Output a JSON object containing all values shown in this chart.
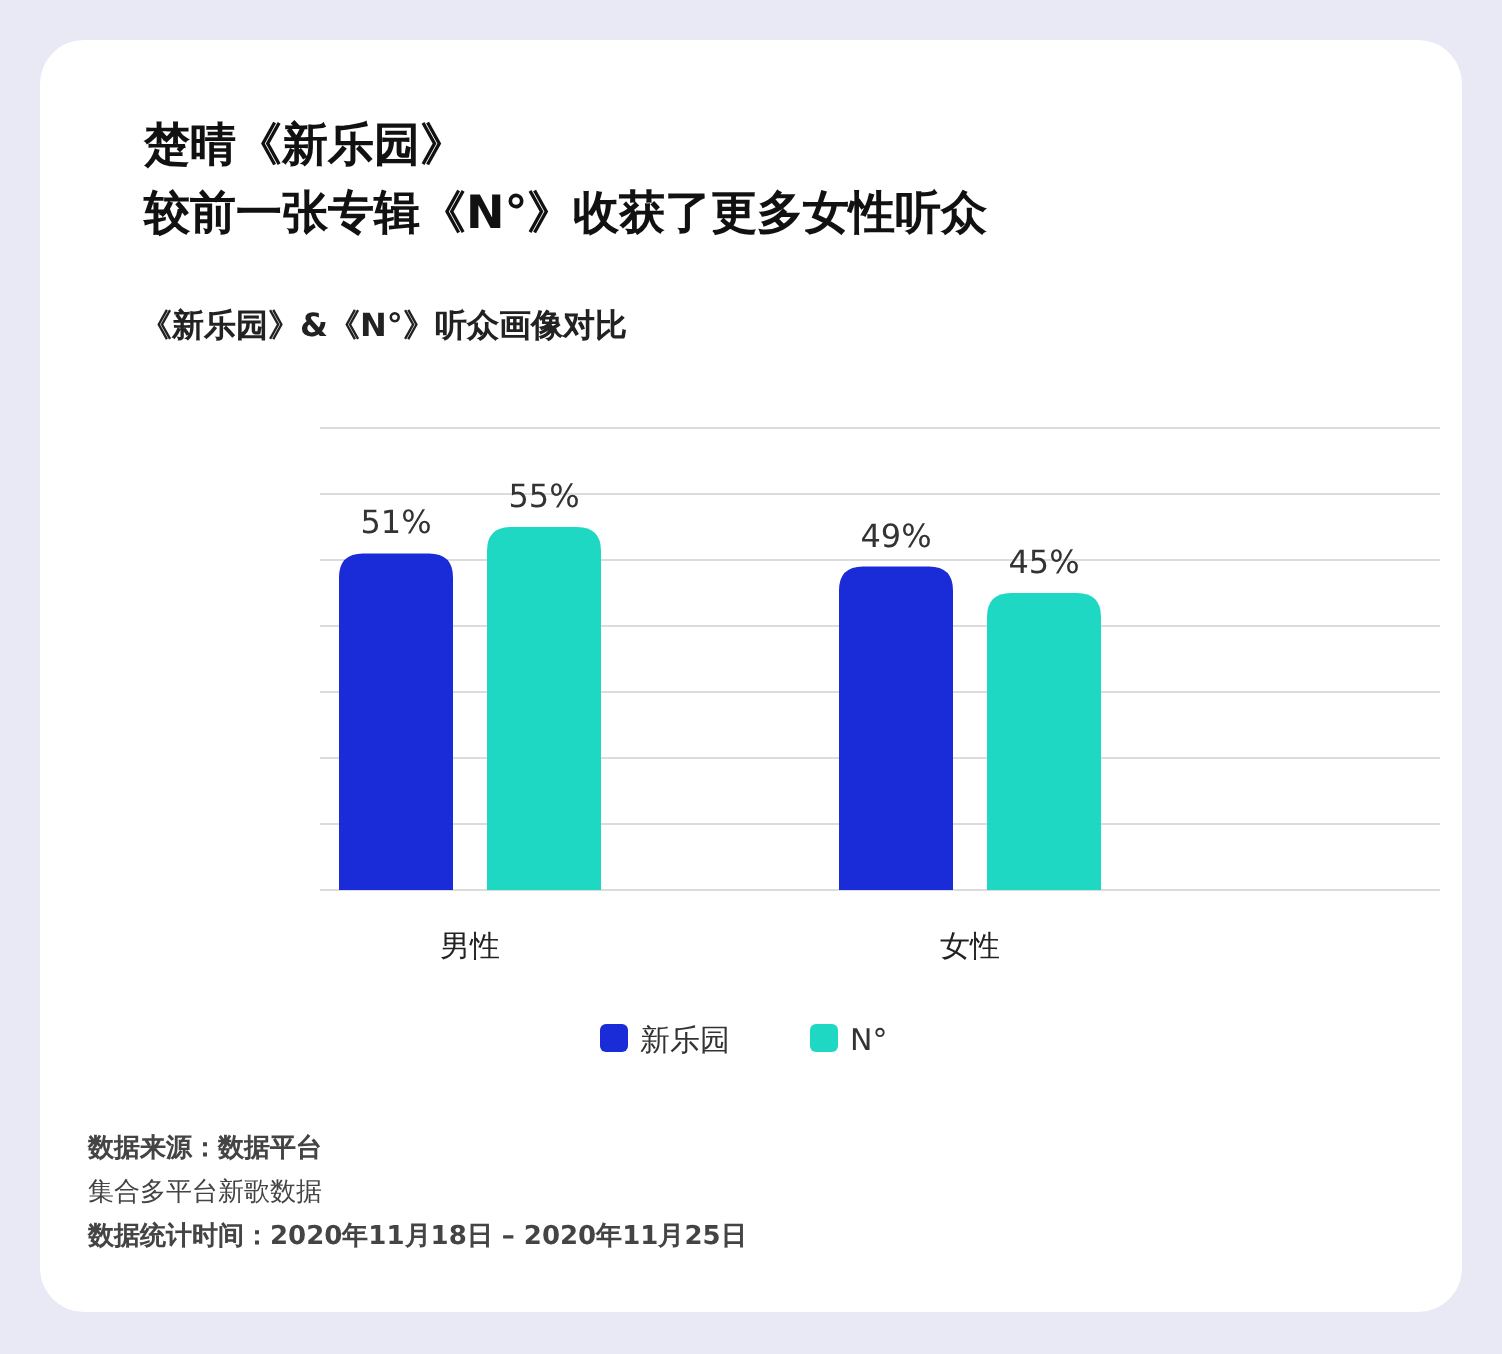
{
  "chart_data": {
    "type": "bar",
    "title": "楚晴《新乐园》较前一张专辑《N°》收获了更多女性听众",
    "subtitle": "《新乐园》&《N°》听众画像对比",
    "categories": [
      "男性",
      "女性"
    ],
    "series": [
      {
        "name": "新乐园",
        "color": "#1a2bd8",
        "values": [
          51,
          49
        ],
        "value_labels": [
          "51%",
          "49%"
        ]
      },
      {
        "name": "N°",
        "color": "#1fd8c4",
        "values": [
          55,
          45
        ],
        "value_labels": [
          "55%",
          "45%"
        ]
      }
    ],
    "ylim": [
      0,
      70
    ],
    "yticks": [
      {
        "value": 0,
        "label": null
      },
      {
        "value": 10,
        "label": null
      },
      {
        "value": 20,
        "label": null
      },
      {
        "value": 30,
        "label": null
      },
      {
        "value": 40,
        "label": null
      },
      {
        "value": 50,
        "label": null
      },
      {
        "value": 60,
        "label": null
      },
      {
        "value": 70,
        "label": null
      }
    ],
    "grid": "y",
    "legend": "bottom",
    "tick_labels": "x",
    "annotations": [
      "数据来源：数据平台",
      "集合多平台新歌数据",
      "数据统计时间：2020年11月18日 – 2020年11月25日"
    ]
  }
}
